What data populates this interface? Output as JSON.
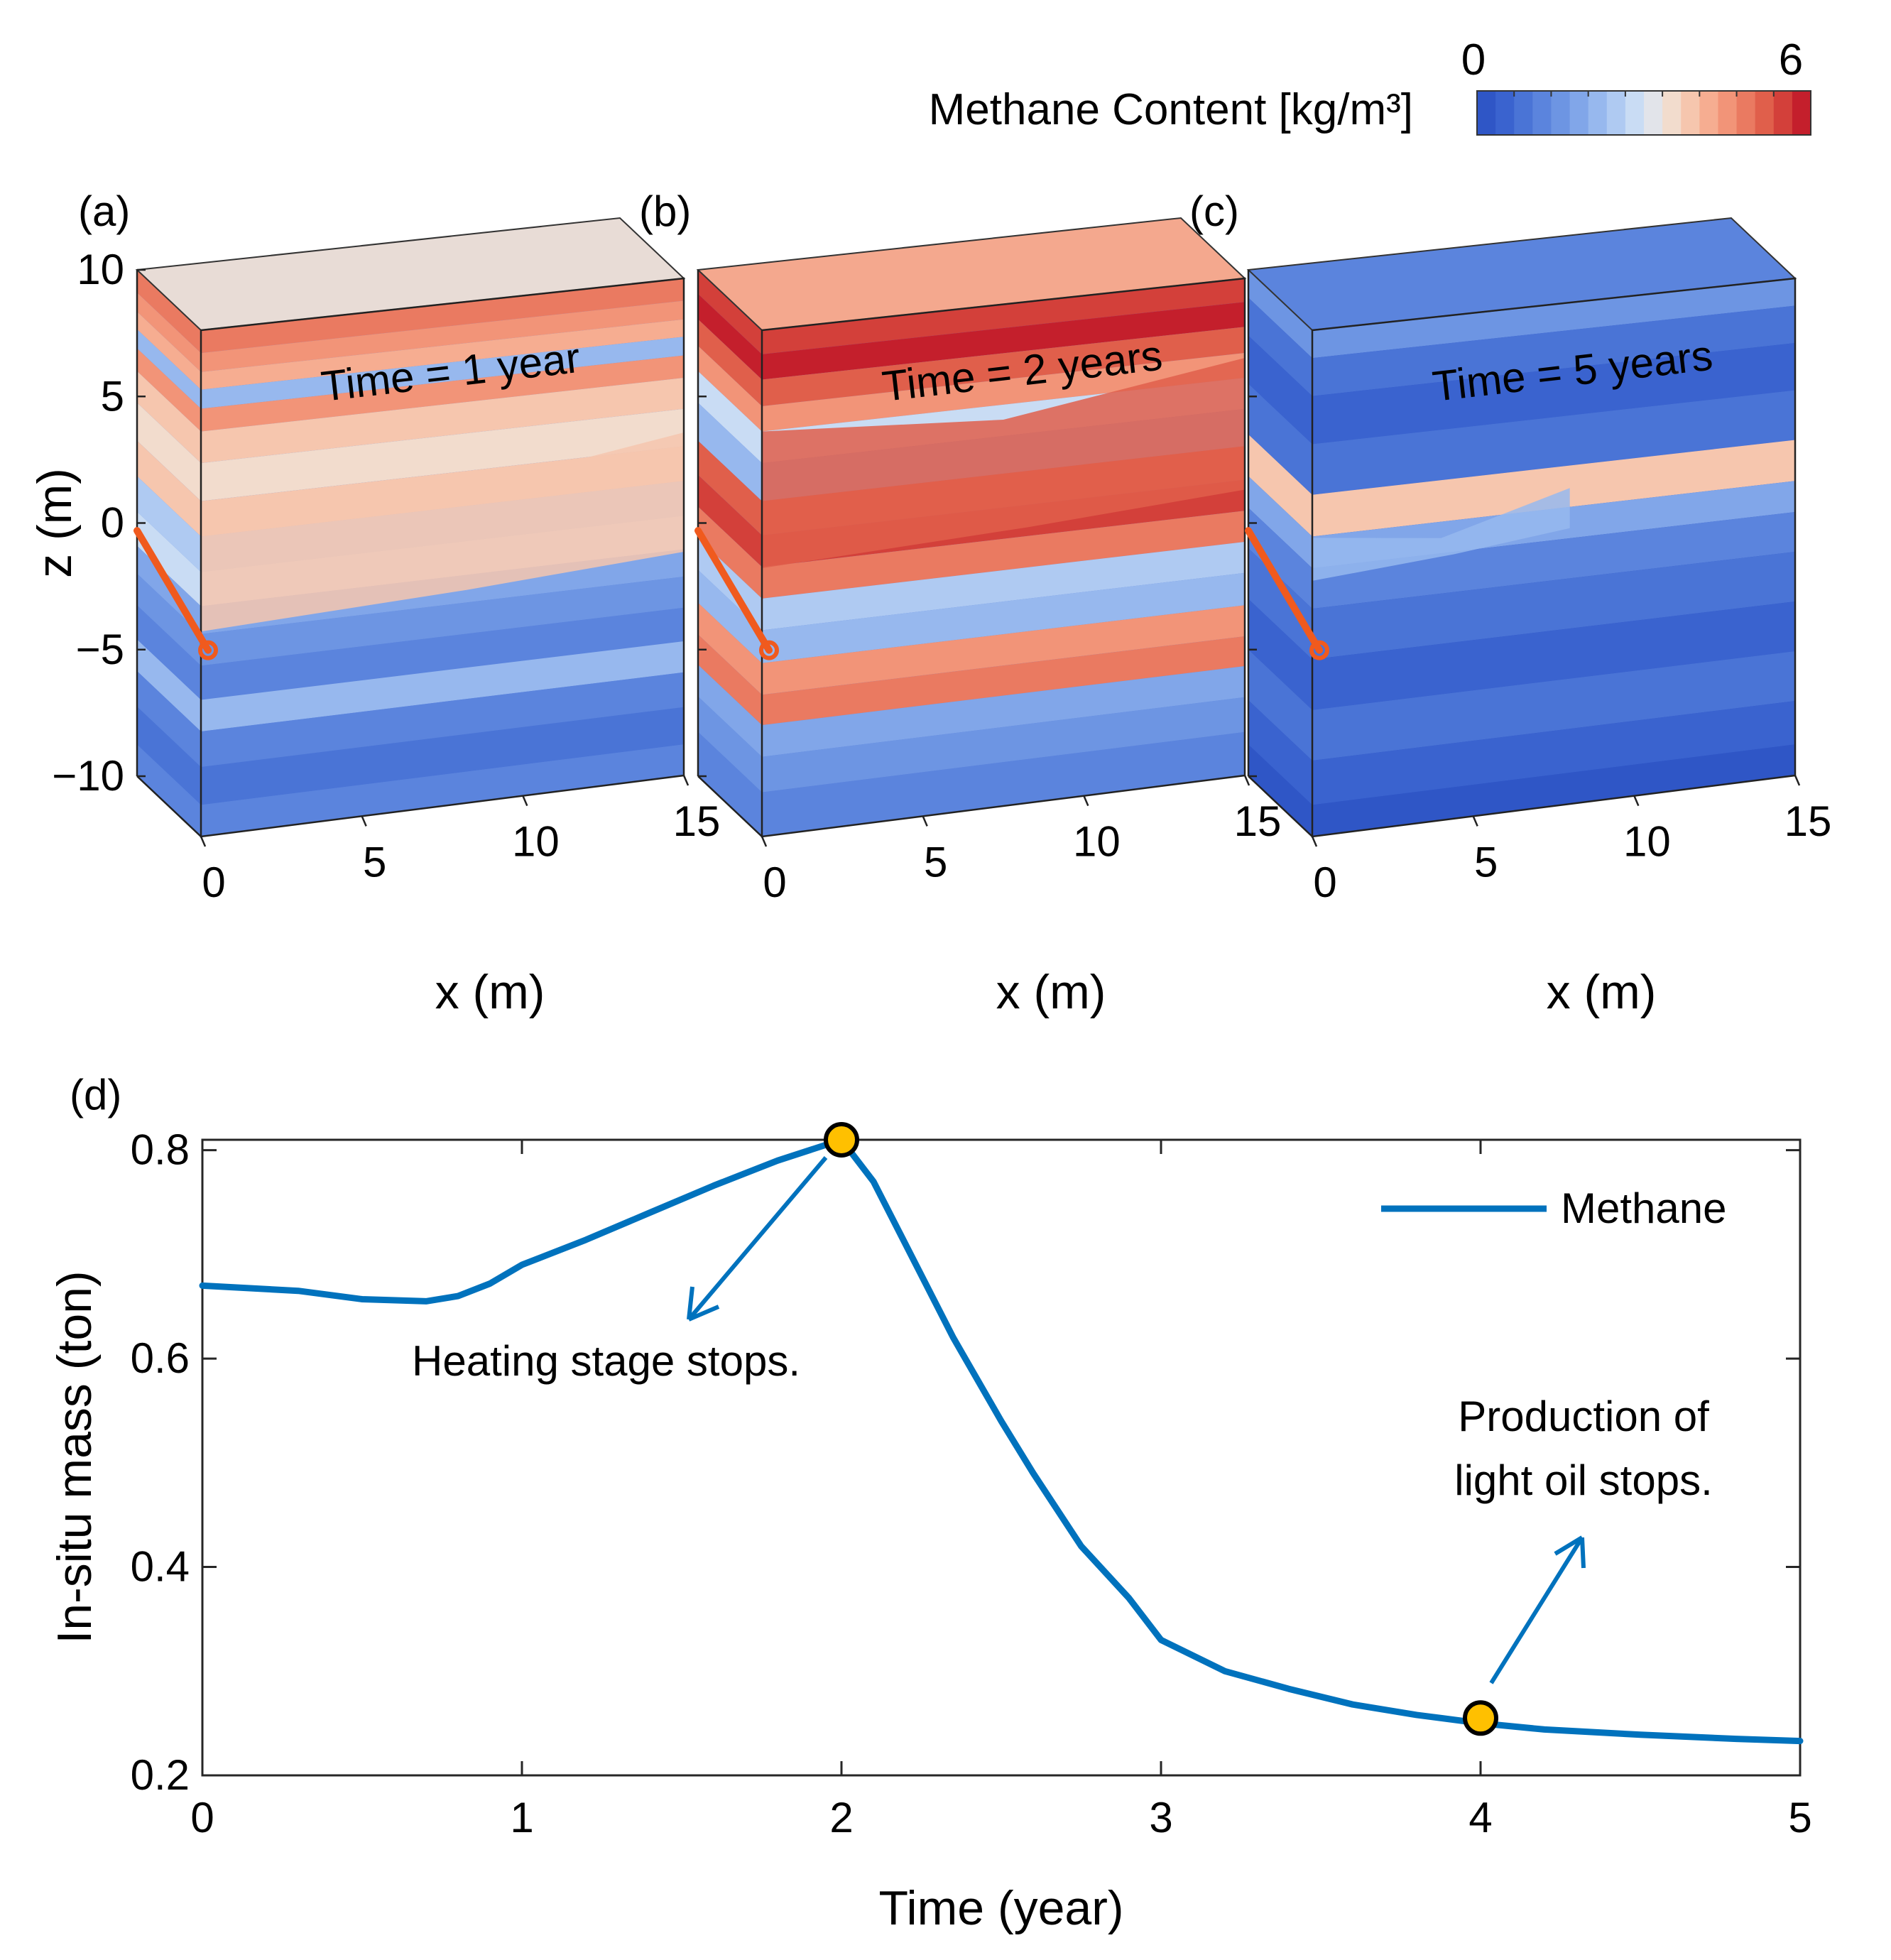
{
  "colorbar": {
    "title": "Methane Content [kg/m³]",
    "min_label": "0",
    "max_label": "6",
    "min": 0,
    "max": 6,
    "colors": [
      "#2f56c6",
      "#3a63cf",
      "#4a74d6",
      "#5b84dd",
      "#6d95e3",
      "#81a6e9",
      "#97b8ee",
      "#afcaf2",
      "#c9dcf4",
      "#e2e4ea",
      "#f2dccd",
      "#f6c6ae",
      "#f6ad91",
      "#f29478",
      "#ea7a61",
      "#e05f4b",
      "#d3403a",
      "#c41f2c"
    ]
  },
  "panels": [
    {
      "letter": "(a)",
      "time_label": "Time = 1 year",
      "z_label": "z (m)",
      "x_label": "x (m)",
      "z_ticks": [
        "10",
        "5",
        "0",
        "−5",
        "−10"
      ],
      "x_ticks": [
        "0",
        "5",
        "10",
        "15"
      ],
      "top_color": "#e8dcd6",
      "layers": [
        {
          "z": 9.5,
          "c": "#ea7a61"
        },
        {
          "z": 8.7,
          "c": "#f29478"
        },
        {
          "z": 8.0,
          "c": "#f6ad91"
        },
        {
          "z": 7.3,
          "c": "#97b8ee"
        },
        {
          "z": 6.5,
          "c": "#f29478"
        },
        {
          "z": 5.5,
          "c": "#f6c6ae"
        },
        {
          "z": 4.0,
          "c": "#f2dccd"
        },
        {
          "z": 2.5,
          "c": "#f6c6ae"
        },
        {
          "z": 1.2,
          "c": "#afcaf2"
        },
        {
          "z": -0.3,
          "c": "#c9dcf4"
        },
        {
          "z": -1.5,
          "c": "#81a6e9"
        },
        {
          "z": -2.5,
          "c": "#6d95e3"
        },
        {
          "z": -4.0,
          "c": "#5b84dd"
        },
        {
          "z": -5.2,
          "c": "#97b8ee"
        },
        {
          "z": -6.5,
          "c": "#5b84dd"
        },
        {
          "z": -8.0,
          "c": "#4a74d6"
        },
        {
          "z": -9.5,
          "c": "#5b84dd"
        }
      ],
      "plume": {
        "c": "#f6c6ae",
        "z_top": 3.0,
        "z_bottom": -1.5,
        "x_extent": 15
      }
    },
    {
      "letter": "(b)",
      "time_label": "Time = 2 years",
      "z_label": "",
      "x_label": "x (m)",
      "z_ticks": [],
      "x_ticks": [
        "0",
        "5",
        "10",
        "15"
      ],
      "top_color": "#f4a88e",
      "layers": [
        {
          "z": 9.5,
          "c": "#d3403a"
        },
        {
          "z": 8.6,
          "c": "#c41f2c"
        },
        {
          "z": 7.5,
          "c": "#e05f4b"
        },
        {
          "z": 6.5,
          "c": "#f29478"
        },
        {
          "z": 5.5,
          "c": "#c9dcf4"
        },
        {
          "z": 4.0,
          "c": "#97b8ee"
        },
        {
          "z": 2.5,
          "c": "#e05f4b"
        },
        {
          "z": 1.3,
          "c": "#d3403a"
        },
        {
          "z": 0.0,
          "c": "#ea7a61"
        },
        {
          "z": -1.2,
          "c": "#afcaf2"
        },
        {
          "z": -2.5,
          "c": "#97b8ee"
        },
        {
          "z": -3.8,
          "c": "#f29478"
        },
        {
          "z": -5.0,
          "c": "#ea7a61"
        },
        {
          "z": -6.2,
          "c": "#81a6e9"
        },
        {
          "z": -7.5,
          "c": "#6d95e3"
        },
        {
          "z": -9.0,
          "c": "#5b84dd"
        }
      ],
      "plume": {
        "c": "#e05f4b",
        "z_top": 6.0,
        "z_bottom": 1.0,
        "x_extent": 15
      }
    },
    {
      "letter": "(c)",
      "time_label": "Time = 5 years",
      "z_label": "",
      "x_label": "x (m)",
      "z_ticks": [],
      "x_ticks": [
        "0",
        "5",
        "10",
        "15"
      ],
      "top_color": "#5b84dd",
      "layers": [
        {
          "z": 9.5,
          "c": "#6d95e3"
        },
        {
          "z": 8.3,
          "c": "#4a74d6"
        },
        {
          "z": 6.5,
          "c": "#3a63cf"
        },
        {
          "z": 4.5,
          "c": "#4a74d6"
        },
        {
          "z": 2.5,
          "c": "#f6c6ae"
        },
        {
          "z": 1.2,
          "c": "#81a6e9"
        },
        {
          "z": 0.0,
          "c": "#5b84dd"
        },
        {
          "z": -2.0,
          "c": "#4a74d6"
        },
        {
          "z": -4.0,
          "c": "#3a63cf"
        },
        {
          "z": -6.0,
          "c": "#4a74d6"
        },
        {
          "z": -8.0,
          "c": "#3a63cf"
        },
        {
          "z": -9.5,
          "c": "#2f56c6"
        }
      ],
      "plume": {
        "c": "#97b8ee",
        "z_top": 1.8,
        "z_bottom": 0.5,
        "x_extent": 8
      }
    }
  ],
  "chart_data": {
    "type": "line",
    "panel_letter": "(d)",
    "title": "",
    "xlabel": "Time (year)",
    "ylabel": "In-situ mass (ton)",
    "xlim": [
      0,
      5
    ],
    "ylim": [
      0.2,
      0.81
    ],
    "xticks": [
      0,
      1,
      2,
      3,
      4,
      5
    ],
    "xtick_labels": [
      "0",
      "1",
      "2",
      "3",
      "4",
      "5"
    ],
    "yticks": [
      0.2,
      0.4,
      0.6,
      0.8
    ],
    "ytick_labels": [
      "0.2",
      "0.4",
      "0.6",
      "0.8"
    ],
    "legend": "top-right",
    "series": [
      {
        "name": "Methane",
        "color": "#0072bd",
        "x": [
          0,
          0.3,
          0.5,
          0.7,
          0.8,
          0.9,
          1.0,
          1.2,
          1.4,
          1.6,
          1.8,
          2.0,
          2.1,
          2.2,
          2.35,
          2.5,
          2.6,
          2.75,
          2.9,
          3.0,
          3.2,
          3.4,
          3.6,
          3.8,
          4.0,
          4.2,
          4.5,
          4.8,
          5.0
        ],
        "y": [
          0.67,
          0.665,
          0.657,
          0.655,
          0.66,
          0.672,
          0.69,
          0.714,
          0.74,
          0.766,
          0.79,
          0.81,
          0.77,
          0.71,
          0.62,
          0.54,
          0.49,
          0.42,
          0.37,
          0.33,
          0.3,
          0.283,
          0.268,
          0.258,
          0.25,
          0.244,
          0.239,
          0.235,
          0.233
        ]
      }
    ],
    "markers": [
      {
        "x": 2.0,
        "y": 0.81,
        "color": "#ffc000"
      },
      {
        "x": 4.0,
        "y": 0.255,
        "color": "#ffc000"
      }
    ],
    "annotations": [
      {
        "lines": [
          "Heating stage stops."
        ]
      },
      {
        "lines": [
          "Production of",
          "light oil stops."
        ]
      }
    ]
  }
}
